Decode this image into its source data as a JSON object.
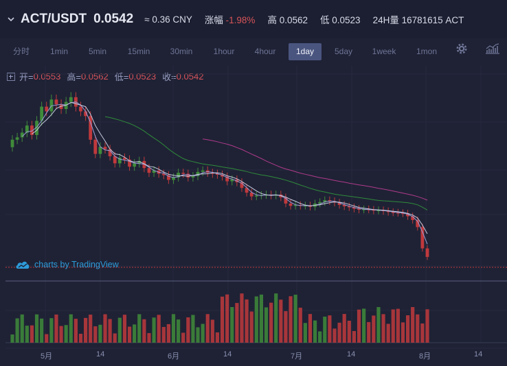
{
  "header": {
    "pair": "ACT/USDT",
    "last_price": "0.0542",
    "cny_label": "≈ 0.36 CNY",
    "change_label": "涨幅",
    "change_value": "-1.98%",
    "high_label": "高",
    "high_value": "0.0562",
    "low_label": "低",
    "low_value": "0.0523",
    "volume_label": "24H量",
    "volume_value": "16781615 ACT"
  },
  "intervals": [
    "分时",
    "1min",
    "5min",
    "15min",
    "30min",
    "1hour",
    "4hour",
    "1day",
    "5day",
    "1week",
    "1mon"
  ],
  "active_interval": "1day",
  "ohlc": {
    "open_label": "开=",
    "open": "0.0553",
    "high_label": "高=",
    "high": "0.0562",
    "low_label": "低=",
    "low": "0.0523",
    "close_label": "收=",
    "close": "0.0542"
  },
  "watermark": "charts by TradingView",
  "x_axis_labels": [
    "5月",
    "14",
    "6月",
    "14",
    "7月",
    "14",
    "8月",
    "14"
  ],
  "icons": {
    "settings": "gear-icon",
    "indicators": "indicators-icon",
    "collapse": "chevron-down-icon",
    "ohlc_toggle": "plus-box-icon"
  },
  "colors": {
    "up": "#3f8b3a",
    "down": "#c0393c",
    "ma_short": "#9b9ed8",
    "ma_mid": "#c7cbe0",
    "ma_long1": "#2f8c3b",
    "ma_long2": "#b03b8b",
    "active_tab": "#4a557f"
  },
  "chart_data": {
    "type": "candlestick",
    "candle_closes": [
      0.079,
      0.0795,
      0.0805,
      0.082,
      0.08,
      0.083,
      0.086,
      0.085,
      0.0875,
      0.0865,
      0.0855,
      0.087,
      0.088,
      0.086,
      0.085,
      0.084,
      0.079,
      0.076,
      0.0775,
      0.077,
      0.0755,
      0.074,
      0.0752,
      0.0748,
      0.0733,
      0.074,
      0.0745,
      0.073,
      0.072,
      0.0725,
      0.0718,
      0.0715,
      0.0705,
      0.071,
      0.072,
      0.0718,
      0.071,
      0.0713,
      0.0722,
      0.0725,
      0.072,
      0.0718,
      0.0716,
      0.0712,
      0.0702,
      0.0706,
      0.07,
      0.0688,
      0.0678,
      0.067,
      0.0672,
      0.0673,
      0.0674,
      0.0672,
      0.0674,
      0.0668,
      0.0655,
      0.065,
      0.0652,
      0.065,
      0.0651,
      0.0648,
      0.0655,
      0.0658,
      0.0662,
      0.066,
      0.0657,
      0.0652,
      0.0649,
      0.0647,
      0.0644,
      0.0642,
      0.0643,
      0.0642,
      0.064,
      0.0641,
      0.0639,
      0.0637,
      0.0636,
      0.0635,
      0.0634,
      0.0628,
      0.062,
      0.0605,
      0.056,
      0.0542
    ],
    "ma_lines": [
      "short",
      "mid",
      "long1",
      "long2"
    ],
    "volume_bars": 86,
    "current_price": 0.0542
  }
}
